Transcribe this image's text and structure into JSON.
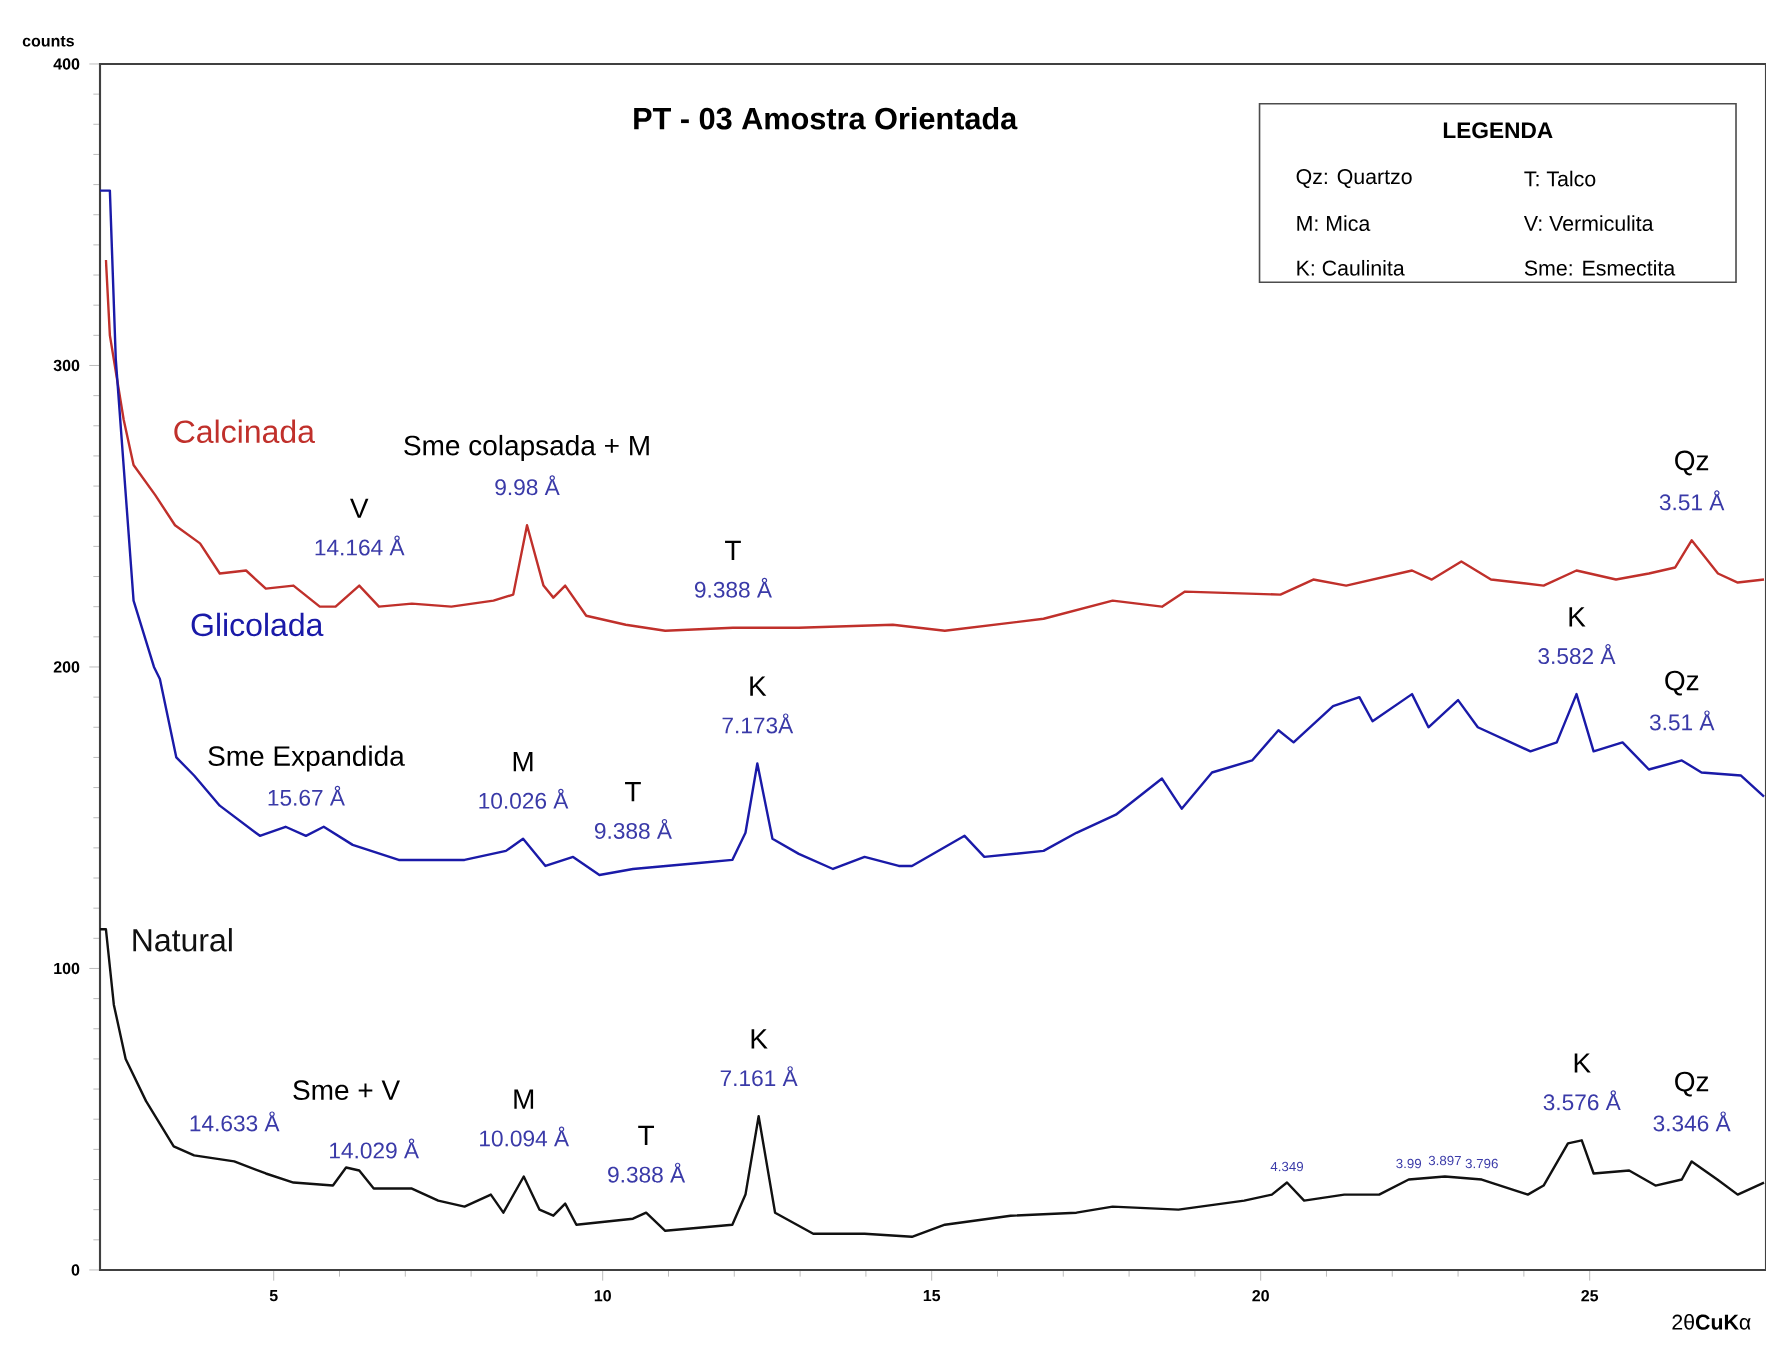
{
  "chart_data": {
    "type": "line",
    "title": "PT - 03 Amostra Orientada",
    "xlabel": "2θ**CuK**α",
    "ylabel": "counts",
    "xlim": [
      2.36,
      27.68
    ],
    "ylim": [
      0,
      400
    ],
    "xticks": [
      5,
      10,
      15,
      20,
      25
    ],
    "yticks": [
      0,
      100,
      200,
      300,
      400
    ],
    "series": [
      {
        "name": "Calcinada",
        "color": "#c0302b",
        "x": [
          2.45,
          2.51,
          2.72,
          2.87,
          3.2,
          3.5,
          3.88,
          4.18,
          4.58,
          4.88,
          5.3,
          5.7,
          5.94,
          6.3,
          6.6,
          7.1,
          7.7,
          8.34,
          8.64,
          8.85,
          9.1,
          9.25,
          9.43,
          9.75,
          10.35,
          10.95,
          11.98,
          12.98,
          14.41,
          15.2,
          16.7,
          17.75,
          18.5,
          18.85,
          20.3,
          20.8,
          21.3,
          22.3,
          22.6,
          23.05,
          23.5,
          24.3,
          24.8,
          25.4,
          25.9,
          26.3,
          26.55,
          26.95,
          27.25,
          27.65
        ],
        "values": [
          335,
          310,
          282,
          267,
          257,
          247,
          241,
          231,
          232,
          226,
          227,
          220,
          220,
          227,
          220,
          221,
          220,
          222,
          224,
          247,
          227,
          223,
          227,
          217,
          214,
          212,
          213,
          213,
          214,
          212,
          216,
          222,
          220,
          225,
          224,
          229,
          227,
          232,
          229,
          235,
          229,
          227,
          232,
          229,
          231,
          233,
          242,
          231,
          228,
          229
        ]
      },
      {
        "name": "Glicolada",
        "color": "#1a1aa8",
        "x": [
          2.36,
          2.51,
          2.6,
          2.87,
          3.18,
          3.27,
          3.52,
          3.79,
          4.18,
          4.79,
          5.18,
          5.49,
          5.76,
          6.2,
          6.9,
          7.9,
          8.53,
          8.79,
          9.13,
          9.55,
          9.95,
          10.46,
          11.46,
          11.97,
          12.17,
          12.35,
          12.58,
          12.98,
          13.5,
          13.98,
          14.5,
          14.7,
          15.5,
          15.8,
          16.7,
          17.2,
          17.8,
          18.5,
          18.8,
          19.26,
          19.87,
          20.27,
          20.5,
          21.1,
          21.5,
          21.7,
          22.3,
          22.55,
          23.0,
          23.3,
          24.1,
          24.5,
          24.8,
          25.06,
          25.5,
          25.9,
          26.4,
          26.7,
          27.3,
          27.65
        ],
        "values": [
          358,
          358,
          302,
          222,
          200,
          196,
          170,
          164,
          154,
          144,
          147,
          144,
          147,
          141,
          136,
          136,
          139,
          143,
          134,
          137,
          131,
          133,
          135,
          136,
          145,
          168,
          143,
          138,
          133,
          137,
          134,
          134,
          144,
          137,
          139,
          145,
          151,
          163,
          153,
          165,
          169,
          179,
          175,
          187,
          190,
          182,
          191,
          180,
          189,
          180,
          172,
          175,
          191,
          172,
          175,
          166,
          169,
          165,
          164,
          157
        ]
      },
      {
        "name": "Natural",
        "color": "#111111",
        "x": [
          2.36,
          2.45,
          2.57,
          2.75,
          3.06,
          3.48,
          3.79,
          4.4,
          4.88,
          5.3,
          5.9,
          6.1,
          6.3,
          6.52,
          7.1,
          7.5,
          7.9,
          8.3,
          8.49,
          8.8,
          9.04,
          9.25,
          9.43,
          9.6,
          10.46,
          10.66,
          10.95,
          11.97,
          12.17,
          12.37,
          12.62,
          13.2,
          13.98,
          14.7,
          15.2,
          16.2,
          17.2,
          17.75,
          18.75,
          19.75,
          20.17,
          20.4,
          20.66,
          21.27,
          21.8,
          22.25,
          22.8,
          23.36,
          24.06,
          24.3,
          24.67,
          24.88,
          25.06,
          25.6,
          26.0,
          26.4,
          26.55,
          26.94,
          27.25,
          27.65
        ],
        "values": [
          113,
          113,
          88,
          70,
          56,
          41,
          38,
          36,
          32,
          29,
          28,
          34,
          33,
          27,
          27,
          23,
          21,
          25,
          19,
          31,
          20,
          18,
          22,
          15,
          17,
          19,
          13,
          15,
          25,
          51,
          19,
          12,
          12,
          11,
          15,
          18,
          19,
          21,
          20,
          23,
          25,
          29,
          23,
          25,
          25,
          30,
          31,
          30,
          25,
          28,
          42,
          43,
          32,
          33,
          28,
          30,
          36,
          30,
          25,
          29
        ]
      }
    ],
    "annotations": [
      {
        "text": "Sme colapsada + M",
        "x": 8.85,
        "y": 247
      },
      {
        "text": "V",
        "x": 6.3,
        "y": 227
      },
      {
        "text": "T",
        "x": 11.98,
        "y": 213
      },
      {
        "text": "Qz",
        "x": 26.55,
        "y": 242
      },
      {
        "text": "Sme Expandida",
        "x": 5.49,
        "y": 144
      },
      {
        "text": "M",
        "x": 8.79,
        "y": 143
      },
      {
        "text": "T",
        "x": 10.46,
        "y": 133
      },
      {
        "text": "K",
        "x": 12.35,
        "y": 168
      },
      {
        "text": "K",
        "x": 24.8,
        "y": 191
      },
      {
        "text": "Qz",
        "x": 26.4,
        "y": 169
      },
      {
        "text": "Sme + V",
        "x": 6.1,
        "y": 34
      },
      {
        "text": "M",
        "x": 8.8,
        "y": 31
      },
      {
        "text": "T",
        "x": 10.66,
        "y": 19
      },
      {
        "text": "K",
        "x": 12.37,
        "y": 51
      },
      {
        "text": "K",
        "x": 24.88,
        "y": 43
      },
      {
        "text": "Qz",
        "x": 26.55,
        "y": 36
      },
      {
        "text": "9.98 Å",
        "x": 8.85,
        "y": 247
      },
      {
        "text": "14.164 Å",
        "x": 6.3,
        "y": 227
      },
      {
        "text": "9.388 Å",
        "x": 11.98,
        "y": 213
      },
      {
        "text": "3.51 Å",
        "x": 26.55,
        "y": 242
      },
      {
        "text": "15.67 Å",
        "x": 5.49,
        "y": 144
      },
      {
        "text": "10.026 Å",
        "x": 8.79,
        "y": 143
      },
      {
        "text": "9.388 Å",
        "x": 10.46,
        "y": 133
      },
      {
        "text": "7.173Å",
        "x": 12.35,
        "y": 168
      },
      {
        "text": "3.582 Å",
        "x": 24.8,
        "y": 191
      },
      {
        "text": "3.51 Å",
        "x": 26.4,
        "y": 169
      },
      {
        "text": "14.029 Å",
        "x": 6.52,
        "y": 27
      },
      {
        "text": "14.633 Å",
        "x": 4.4,
        "y": 36
      },
      {
        "text": "10.094 Å",
        "x": 8.8,
        "y": 31
      },
      {
        "text": "9.388 Å",
        "x": 10.66,
        "y": 19
      },
      {
        "text": "7.161 Å",
        "x": 12.37,
        "y": 51
      },
      {
        "text": "3.576 Å",
        "x": 24.88,
        "y": 43
      },
      {
        "text": "3.346 Å",
        "x": 26.55,
        "y": 36
      },
      {
        "text": "4.349",
        "x": 20.4,
        "y": 29
      },
      {
        "text": "3.99",
        "x": 22.25,
        "y": 30
      },
      {
        "text": "3.897",
        "x": 22.8,
        "y": 31
      },
      {
        "text": "3.796",
        "x": 23.36,
        "y": 30
      },
      "LEGENDA",
      "Qz: Quartzo",
      "T: Talco",
      "M: Mica",
      "V: Vermiculita",
      "K: Caulinita",
      "Sme: Esmectita"
    ]
  }
}
